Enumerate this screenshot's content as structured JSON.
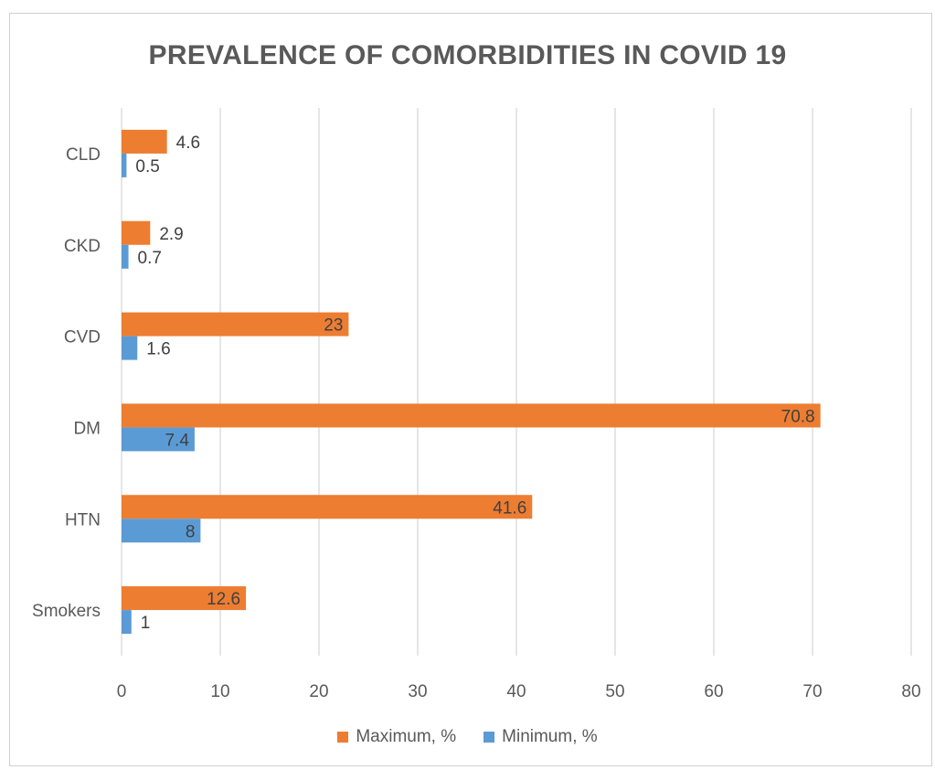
{
  "chart_data": {
    "type": "bar",
    "orientation": "horizontal",
    "title": "PREVALENCE OF COMORBIDITIES IN COVID 19",
    "categories": [
      "CLD",
      "CKD",
      "CVD",
      "DM",
      "HTN",
      "Smokers"
    ],
    "series": [
      {
        "name": "Maximum, %",
        "color": "#ED7D31",
        "values": [
          4.6,
          2.9,
          23,
          70.8,
          41.6,
          12.6
        ]
      },
      {
        "name": "Minimum, %",
        "color": "#5B9BD5",
        "values": [
          0.5,
          0.7,
          1.6,
          7.4,
          8,
          1
        ]
      }
    ],
    "data_labels": {
      "Maximum, %": [
        "4.6",
        "2.9",
        "23",
        "70.8",
        "41.6",
        "12.6"
      ],
      "Minimum, %": [
        "0.5",
        "0.7",
        "1.6",
        "7.4",
        "8",
        "1"
      ]
    },
    "xlim": [
      0,
      80
    ],
    "xticks": [
      0,
      10,
      20,
      30,
      40,
      50,
      60,
      70,
      80
    ],
    "grid": "vertical",
    "legend": "bottom-center",
    "xlabel": "",
    "ylabel": ""
  }
}
